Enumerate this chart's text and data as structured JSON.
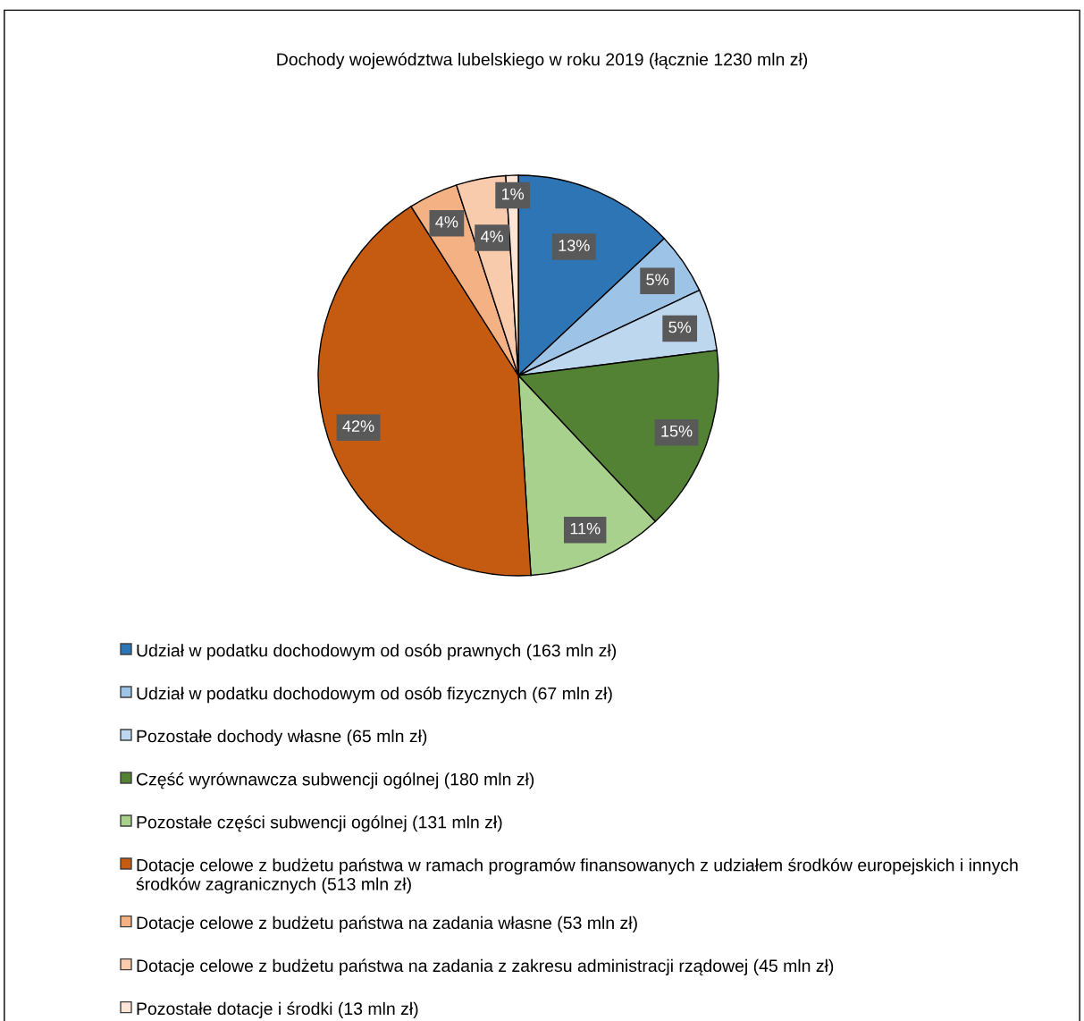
{
  "chart_data": {
    "type": "pie",
    "title": "Dochody województwa lubelskiego w roku 2019 (łącznie 1230 mln zł)",
    "categories": [
      "Udział w podatku dochodowym od osób prawnych (163 mln zł)",
      "Udział w podatku dochodowym od osób fizycznych (67 mln zł)",
      "Pozostałe dochody własne (65 mln zł)",
      "Część wyrównawcza subwencji ogólnej (180 mln zł)",
      "Pozostałe części subwencji ogólnej (131 mln zł)",
      "Dotacje celowe z budżetu państwa w ramach programów finansowanych z udziałem środków europejskich i innych środków zagranicznych (513 mln zł)",
      "Dotacje celowe z budżetu państwa na zadania własne (53 mln zł)",
      "Dotacje celowe z budżetu państwa na zadania z zakresu administracji rządowej (45 mln zł)",
      "Pozostałe dotacje i środki (13 mln zł)"
    ],
    "values": [
      13,
      5,
      5,
      15,
      11,
      42,
      4,
      4,
      1
    ],
    "value_labels": [
      "13%",
      "5%",
      "5%",
      "15%",
      "11%",
      "42%",
      "4%",
      "4%",
      "1%"
    ],
    "colors": [
      "#2e75b6",
      "#9dc3e6",
      "#bdd7ee",
      "#548235",
      "#a9d18e",
      "#c55a11",
      "#f4b183",
      "#f8cbad",
      "#fbe5d6"
    ],
    "legend": "bottom"
  }
}
